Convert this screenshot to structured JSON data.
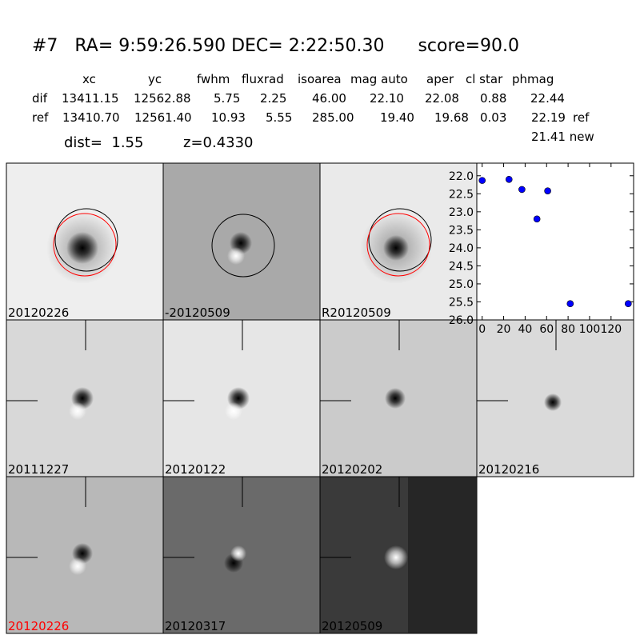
{
  "header": {
    "title": "#7   RA= 9:59:26.590 DEC= 2:22:50.30      score=90.0"
  },
  "table": {
    "columns": [
      "xc",
      "yc",
      "fwhm",
      "fluxrad",
      "isoarea",
      "mag auto",
      "aper",
      "cl star",
      "phmag"
    ],
    "rows": [
      {
        "label": "dif",
        "values": [
          "13411.15",
          "12562.88",
          "5.75",
          "2.25",
          "46.00",
          "22.10",
          "22.08",
          "0.88",
          "22.44"
        ]
      },
      {
        "label": "ref",
        "values": [
          "13410.70",
          "12561.40",
          "10.93",
          "5.55",
          "285.00",
          "19.40",
          "19.68",
          "0.03",
          "22.19"
        ],
        "note": "ref"
      }
    ],
    "new_row": "21.41 new"
  },
  "summary": {
    "dist": "dist=  1.55",
    "z": "z=0.4330"
  },
  "stamps": [
    {
      "label": "20120226"
    },
    {
      "label": "-20120509"
    },
    {
      "label": "R20120509"
    },
    {
      "label": "20111227"
    },
    {
      "label": "20120122"
    },
    {
      "label": "20120202"
    },
    {
      "label": "20120216"
    },
    {
      "label": "20120226",
      "color": "#ff0000"
    },
    {
      "label": "20120317"
    },
    {
      "label": "20120509"
    }
  ],
  "chart_data": {
    "type": "scatter",
    "color": "#0000ff",
    "x": [
      0,
      25,
      37,
      51,
      61,
      82,
      136
    ],
    "values": [
      22.13,
      22.1,
      22.38,
      23.2,
      22.42,
      25.55,
      25.55
    ],
    "xlim": [
      -5,
      141
    ],
    "xticks": [
      0,
      20,
      40,
      60,
      80,
      100,
      120
    ],
    "ylim": [
      21.65,
      26.0
    ],
    "y_inverted": true,
    "yticks": [
      {
        "value": 22.0,
        "label": "22.0"
      },
      {
        "value": 22.5,
        "label": "22.5"
      },
      {
        "value": 23.0,
        "label": "23.0"
      },
      {
        "value": 23.5,
        "label": "23.5"
      },
      {
        "value": 24.0,
        "label": "24.0"
      },
      {
        "value": 24.5,
        "label": "24.5"
      },
      {
        "value": 25.0,
        "label": "25.0"
      },
      {
        "value": 25.5,
        "label": "25.5"
      },
      {
        "value": 26.0,
        "label": "26.0"
      }
    ]
  }
}
